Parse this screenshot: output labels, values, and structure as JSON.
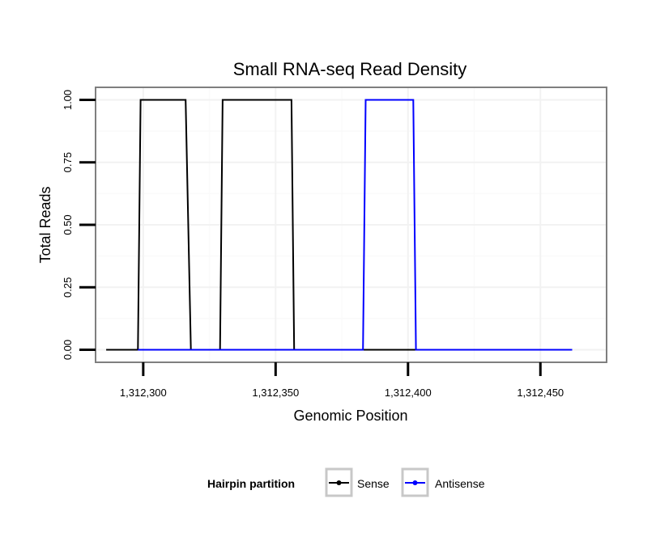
{
  "chart_data": {
    "type": "line",
    "title": "Small RNA-seq Read Density",
    "xlabel": "Genomic Position",
    "ylabel": "Total Reads",
    "xlim": [
      1312282,
      1312475
    ],
    "ylim": [
      -0.05,
      1.05
    ],
    "x_ticks": [
      1312300,
      1312350,
      1312400,
      1312450
    ],
    "x_tick_labels": [
      "1,312,300",
      "1,312,350",
      "1,312,400",
      "1,312,450"
    ],
    "y_ticks": [
      0,
      0.25,
      0.5,
      0.75,
      1.0
    ],
    "y_tick_labels": [
      "0.00",
      "0.25",
      "0.50",
      "0.75",
      "1.00"
    ],
    "grid": true,
    "legend": {
      "title": "Hairpin partition",
      "placement": "bottom"
    },
    "series": [
      {
        "name": "Sense",
        "color": "#000000",
        "x": [
          1312286,
          1312298,
          1312299,
          1312316,
          1312318,
          1312329,
          1312330,
          1312356,
          1312357,
          1312462
        ],
        "y": [
          0,
          0,
          1,
          1,
          0,
          0,
          1,
          1,
          0,
          0
        ]
      },
      {
        "name": "Antisense",
        "color": "#0000ff",
        "x": [
          1312298,
          1312383,
          1312384,
          1312402,
          1312403,
          1312462
        ],
        "y": [
          0,
          0,
          1,
          1,
          0,
          0
        ]
      }
    ]
  }
}
